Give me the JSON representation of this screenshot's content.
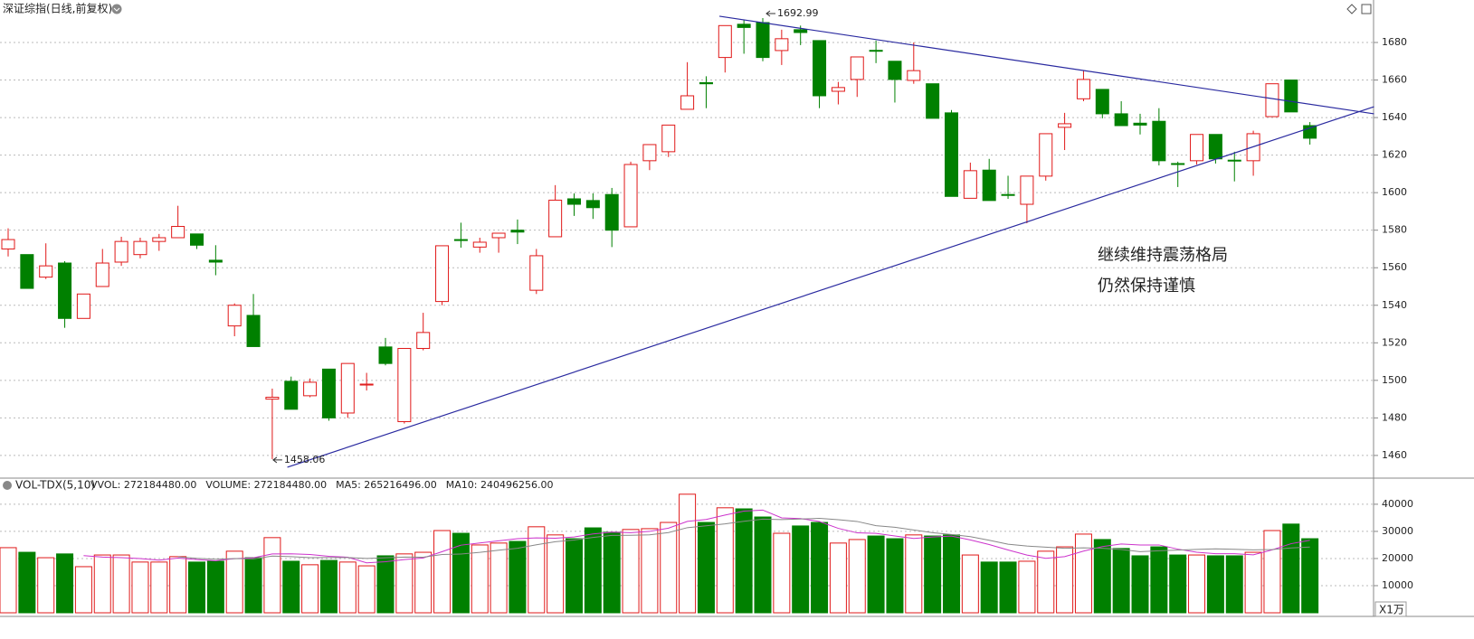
{
  "chart_data": [
    {
      "type": "candlestick",
      "title": "深证综指(日线,前复权)",
      "open": [
        1570,
        1567,
        1555,
        1562.5,
        1533,
        1550,
        1563,
        1567,
        1574,
        1576,
        1578,
        1564,
        1529,
        1534.6,
        1490,
        1499.5,
        1491.8,
        1506,
        1482.6,
        1497.5,
        1517.8,
        1478,
        1517,
        1542,
        1575,
        1571,
        1576,
        1580,
        1548,
        1576.5,
        1596.7,
        1595.8,
        1599,
        1581.8,
        1617,
        1621.8,
        1644.4,
        1658.6,
        1672,
        1689.7,
        1690.6,
        1675.7,
        1686.8,
        1681,
        1654,
        1660.3,
        1675.8,
        1670,
        1659.8,
        1658,
        1642.5,
        1597,
        1612,
        1599,
        1593.8,
        1608.8,
        1634.8,
        1650,
        1655,
        1642,
        1637,
        1638,
        1615.5,
        1617,
        1631,
        1617.3,
        1617,
        1640.5,
        1660,
        1635.7
      ],
      "high": [
        1581,
        1567,
        1573,
        1563.5,
        1546,
        1570,
        1576.5,
        1576,
        1578,
        1593,
        1578,
        1572,
        1541,
        1546,
        1495.6,
        1502,
        1501,
        1506,
        1509,
        1504,
        1522.6,
        1517,
        1536,
        1571.7,
        1584,
        1576,
        1578.4,
        1585.7,
        1570,
        1604,
        1599.6,
        1599.6,
        1602.5,
        1616.5,
        1625.6,
        1636,
        1669.5,
        1662,
        1689,
        1692,
        1692.99,
        1686.8,
        1689,
        1681,
        1659,
        1672.3,
        1681,
        1670,
        1680,
        1658,
        1644,
        1616,
        1618,
        1609,
        1608.8,
        1631.4,
        1642.5,
        1665,
        1655,
        1648.7,
        1642,
        1645,
        1616.5,
        1631,
        1631,
        1621.8,
        1633,
        1658,
        1660,
        1637.6
      ],
      "low": [
        1566,
        1549,
        1554,
        1528,
        1533,
        1550,
        1561,
        1565,
        1569,
        1576,
        1570,
        1556,
        1523.5,
        1518,
        1458.06,
        1484.6,
        1491,
        1478.5,
        1480,
        1494.6,
        1508,
        1477,
        1516,
        1540,
        1570.7,
        1568,
        1568,
        1572.6,
        1546,
        1576.5,
        1587.6,
        1586,
        1571,
        1581.8,
        1612,
        1619,
        1644.4,
        1645,
        1664,
        1674,
        1670,
        1668,
        1678.6,
        1645,
        1647,
        1651,
        1669,
        1648,
        1658,
        1639.6,
        1598,
        1597,
        1595.8,
        1596.7,
        1583.7,
        1606.4,
        1622.7,
        1648.7,
        1639.6,
        1635.7,
        1631,
        1614.5,
        1603,
        1615,
        1615.5,
        1606,
        1609,
        1640.5,
        1643,
        1625.6
      ],
      "close": [
        1575,
        1549,
        1561,
        1533,
        1546,
        1562.5,
        1574,
        1574,
        1576,
        1582,
        1572,
        1563,
        1540,
        1518,
        1491,
        1484.6,
        1499,
        1480,
        1509,
        1498,
        1509,
        1517,
        1525.5,
        1571.7,
        1574.5,
        1573.6,
        1578.4,
        1579,
        1566.4,
        1596,
        1593.8,
        1592,
        1580,
        1615,
        1625.6,
        1636,
        1651.6,
        1658,
        1689,
        1688,
        1672,
        1682,
        1685.3,
        1651.6,
        1656,
        1672.3,
        1675.5,
        1660.3,
        1665,
        1639.6,
        1598,
        1611.7,
        1595.8,
        1598.7,
        1608.8,
        1631.4,
        1636.7,
        1660.3,
        1642,
        1635.7,
        1636,
        1617,
        1615,
        1631,
        1618,
        1617,
        1631.4,
        1658,
        1643,
        1629
      ],
      "up_color": "#e01818",
      "down_color": "#008000",
      "ylim": [
        1448.4,
        1700.7
      ],
      "yticks": [
        1460,
        1480,
        1500,
        1520,
        1540,
        1560,
        1580,
        1600,
        1620,
        1640,
        1660,
        1680
      ],
      "grid": true,
      "marked_high": 40,
      "marked_low": 14,
      "trendlines": [
        {
          "x": [
            37.7,
            72.4
          ],
          "y": [
            1694,
            1642
          ],
          "color": "#2a2aa0"
        },
        {
          "x": [
            14.8,
            72.4
          ],
          "y": [
            1453.7,
            1645.8
          ],
          "color": "#2a2aa0"
        }
      ],
      "annotations": [
        "继续维持震荡格局",
        "仍然保持谨慎"
      ]
    },
    {
      "type": "bar",
      "title": "VOL-TDX(5,10)",
      "legend": [
        {
          "label": "VVOL: 272184480.00",
          "color": "#333333"
        },
        {
          "label": "VOLUME: 272184480.00",
          "color": "#cc33cc"
        },
        {
          "label": "MA5: 265216496.00",
          "color": "#993399"
        },
        {
          "label": "MA10: 240496256.00",
          "color": "#888888"
        }
      ],
      "values": [
        24000,
        22300,
        20300,
        21700,
        17000,
        21300,
        21300,
        18700,
        18700,
        20700,
        18700,
        19000,
        22700,
        20300,
        27700,
        19000,
        17700,
        19300,
        18700,
        17300,
        21000,
        21700,
        22300,
        30300,
        29300,
        25000,
        25700,
        26300,
        31700,
        28700,
        27300,
        31300,
        29700,
        30700,
        31000,
        33300,
        43700,
        33300,
        38700,
        38300,
        35300,
        29300,
        32000,
        33300,
        25700,
        27000,
        28300,
        27300,
        28700,
        28300,
        28700,
        21300,
        18700,
        18700,
        19000,
        22700,
        24300,
        29000,
        27000,
        23700,
        21000,
        24300,
        21300,
        21300,
        21000,
        21000,
        22300,
        30300,
        32700,
        27300
      ],
      "series": [
        {
          "name": "MA5",
          "color": "#cc33cc",
          "values": [
            null,
            null,
            null,
            null,
            21060,
            20520,
            20320,
            20000,
            19400,
            20140,
            19620,
            19160,
            19960,
            20280,
            21680,
            21740,
            21480,
            20800,
            20480,
            18400,
            18800,
            19600,
            20200,
            22520,
            24920,
            25720,
            26520,
            27320,
            27600,
            27480,
            27940,
            29060,
            29740,
            29540,
            30000,
            31200,
            33680,
            34400,
            36000,
            37460,
            37860,
            34980,
            34720,
            33640,
            31120,
            29460,
            29260,
            28320,
            27400,
            27920,
            28260,
            26860,
            25140,
            23140,
            21280,
            20080,
            20680,
            22740,
            24400,
            25340,
            25000,
            25000,
            23460,
            22320,
            21780,
            21780,
            21380,
            23180,
            25460,
            26720
          ]
        },
        {
          "name": "MA10",
          "color": "#888888",
          "values": [
            null,
            null,
            null,
            null,
            null,
            null,
            null,
            null,
            null,
            20600,
            20070,
            19740,
            19980,
            19840,
            20910,
            20680,
            20320,
            20380,
            20380,
            20040,
            20270,
            20540,
            20500,
            21500,
            21660,
            22260,
            23060,
            23760,
            25060,
            26200,
            26830,
            27790,
            28530,
            28570,
            28740,
            29570,
            31370,
            32070,
            32770,
            33730,
            34530,
            34330,
            34560,
            34820,
            34290,
            33660,
            32120,
            31520,
            30520,
            29520,
            28860,
            28060,
            26730,
            25270,
            24600,
            24170,
            23770,
            23940,
            23770,
            23310,
            22540,
            22840,
            23100,
            23360,
            23560,
            23390,
            23190,
            23320,
            23890,
            24250
          ]
        }
      ],
      "ylim": [
        0,
        44300
      ],
      "yticks": [
        10000,
        20000,
        30000,
        40000
      ],
      "grid": true,
      "unit_label": "X1万"
    }
  ]
}
